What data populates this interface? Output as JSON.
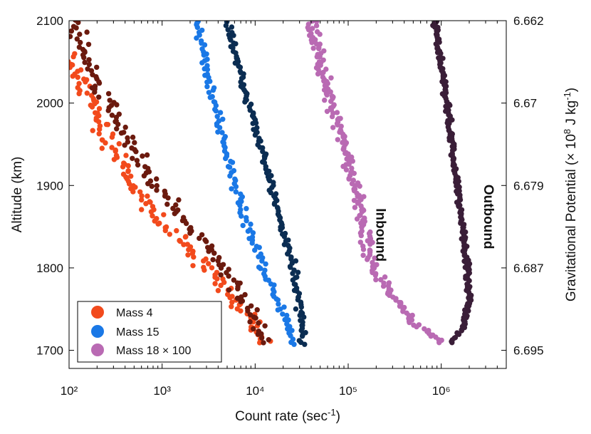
{
  "chart_data": {
    "type": "scatter",
    "title": "",
    "xlabel": "Count rate (sec⁻¹)",
    "ylabel": "Altitude (km)",
    "y2label": "Gravitational Potential (× 10⁸ J kg⁻¹)",
    "xscale": "log",
    "xlim": [
      100,
      5000000
    ],
    "ylim": [
      1678,
      2100
    ],
    "x_ticks": [
      100,
      1000,
      10000,
      100000,
      1000000
    ],
    "x_tick_labels": [
      "10²",
      "10³",
      "10⁴",
      "10⁵",
      "10⁶"
    ],
    "y_ticks": [
      1700,
      1800,
      1900,
      2000,
      2100
    ],
    "y_tick_labels": [
      "1700",
      "1800",
      "1900",
      "2000",
      "2100"
    ],
    "y2_ticks": [
      1700,
      1800,
      1900,
      2000,
      2100
    ],
    "y2_tick_labels": [
      "6.695",
      "6.687",
      "6.679",
      "6.67",
      "6.662"
    ],
    "legend_position": "bottom-left",
    "annotations": [
      {
        "text": "Inbound",
        "x": 200000,
        "y": 1840,
        "rotation": 90
      },
      {
        "text": "Outbound",
        "x": 2900000,
        "y": 1862,
        "rotation": 90
      }
    ],
    "series": [
      {
        "name": "Mass 4",
        "color": "#f24a1c",
        "segment": "inbound",
        "profile": [
          [
            1710,
            12500
          ],
          [
            1750,
            7500
          ],
          [
            1800,
            3000
          ],
          [
            1850,
            1100
          ],
          [
            1900,
            450
          ],
          [
            2000,
            170
          ],
          [
            2060,
            100
          ]
        ],
        "noise": 0.13,
        "count": 150,
        "seed": 11
      },
      {
        "name": "Mass 4",
        "color": "#6b1a0e",
        "segment": "outbound",
        "legend": false,
        "profile": [
          [
            1710,
            12500
          ],
          [
            1750,
            9000
          ],
          [
            1800,
            4600
          ],
          [
            1850,
            2000
          ],
          [
            1900,
            900
          ],
          [
            1950,
            470
          ],
          [
            2000,
            260
          ],
          [
            2060,
            140
          ],
          [
            2100,
            120
          ]
        ],
        "noise": 0.11,
        "count": 140,
        "seed": 23
      },
      {
        "name": "Mass 15",
        "color": "#1a78e6",
        "segment": "inbound",
        "profile": [
          [
            1708,
            27000
          ],
          [
            1730,
            23000
          ],
          [
            1800,
            12000
          ],
          [
            1900,
            6000
          ],
          [
            2000,
            3600
          ],
          [
            2100,
            2300
          ]
        ],
        "noise": 0.06,
        "count": 130,
        "seed": 37
      },
      {
        "name": "Mass 15",
        "color": "#0b2d52",
        "segment": "outbound",
        "legend": false,
        "profile": [
          [
            1708,
            31000
          ],
          [
            1730,
            32000
          ],
          [
            1800,
            26000
          ],
          [
            1900,
            15000
          ],
          [
            2000,
            8500
          ],
          [
            2100,
            5000
          ]
        ],
        "noise": 0.045,
        "count": 150,
        "seed": 41
      },
      {
        "name": "Mass 18 × 100",
        "color": "#b96ab3",
        "segment": "inbound",
        "profile": [
          [
            1710,
            1100000
          ],
          [
            1730,
            550000
          ],
          [
            1800,
            180000
          ],
          [
            1900,
            120000
          ],
          [
            2000,
            65000
          ],
          [
            2100,
            40000
          ]
        ],
        "noise": 0.08,
        "count": 210,
        "seed": 53
      },
      {
        "name": "Mass 18 × 100",
        "color": "#3a1e38",
        "segment": "outbound",
        "legend": false,
        "profile": [
          [
            1710,
            1300000
          ],
          [
            1730,
            1800000
          ],
          [
            1765,
            2000000
          ],
          [
            1800,
            1900000
          ],
          [
            1900,
            1500000
          ],
          [
            2000,
            1150000
          ],
          [
            2100,
            850000
          ]
        ],
        "noise": 0.035,
        "count": 230,
        "seed": 67
      }
    ]
  },
  "legend": [
    {
      "label": "Mass 4",
      "color": "#f24a1c"
    },
    {
      "label": "Mass 15",
      "color": "#1a78e6"
    },
    {
      "label": "Mass 18 × 100",
      "color": "#b96ab3"
    }
  ]
}
